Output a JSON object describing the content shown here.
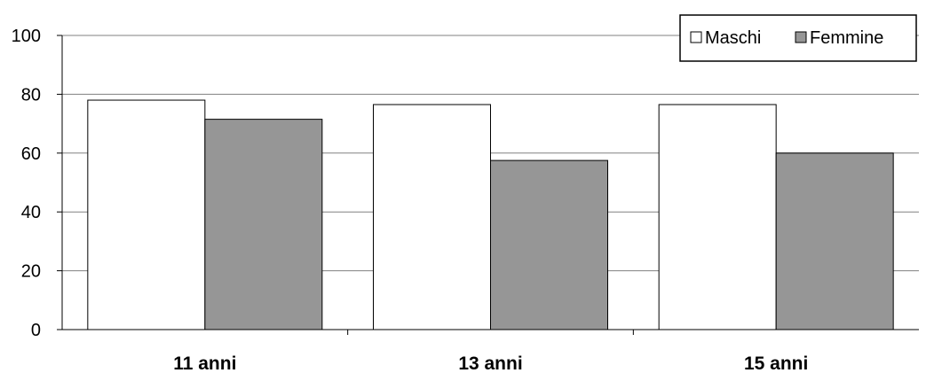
{
  "chart_data": {
    "type": "bar",
    "title": "",
    "xlabel": "",
    "ylabel": "",
    "categories": [
      "11 anni",
      "13 anni",
      "15 anni"
    ],
    "series": [
      {
        "name": "Maschi",
        "values": [
          78,
          76.5,
          76.5
        ],
        "color": "#ffffff"
      },
      {
        "name": "Femmine",
        "values": [
          71.5,
          57.5,
          60
        ],
        "color": "#969696"
      }
    ],
    "ylim": [
      0,
      100
    ],
    "yticks": [
      0,
      20,
      40,
      60,
      80,
      100
    ],
    "grid": true,
    "legend_position": "top-right",
    "colors": {
      "axis": "#000000",
      "grid": "#808080",
      "bar_outline": "#000000"
    }
  }
}
